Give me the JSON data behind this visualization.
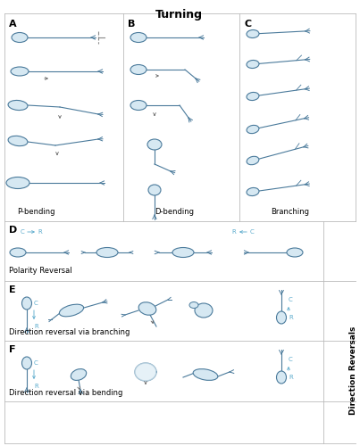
{
  "title": "Turning",
  "direction_reversals_label": "Direction Reversals",
  "sub_labels": {
    "A": "P-bending",
    "B": "D-bending",
    "C": "Branching",
    "D": "Polarity Reversal",
    "E": "Direction reversal via branching",
    "F": "Direction reversal via bending"
  },
  "cell_fill": "#d6e8f2",
  "cell_edge": "#4a7a9b",
  "cr_color": "#5aaacc",
  "fig_bg": "#ffffff",
  "grid_color": "#bbbbbb",
  "title_fontsize": 9,
  "panel_fontsize": 8,
  "label_fontsize": 6,
  "cr_fontsize": 5
}
